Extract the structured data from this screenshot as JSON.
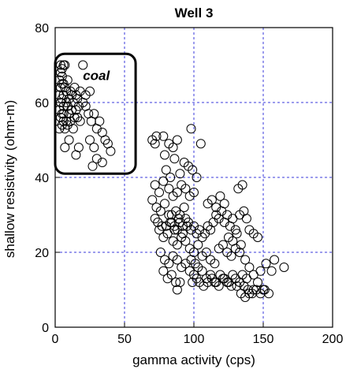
{
  "chart_data": {
    "type": "scatter",
    "title": "Well 3",
    "xlabel": "gamma activity (cps)",
    "ylabel": "shallow resistivity (ohm-m)",
    "xlim": [
      0,
      200
    ],
    "ylim": [
      0,
      80
    ],
    "xticks": [
      0,
      50,
      100,
      150,
      200
    ],
    "yticks": [
      0,
      20,
      40,
      60,
      80
    ],
    "grid": true,
    "colors": {
      "grid": "#3a3adb",
      "marker": "#000000",
      "box": "#000000"
    },
    "annotations": [
      {
        "text": "coal",
        "x": 20,
        "y": 66
      }
    ],
    "highlight_box": {
      "x0": 0,
      "x1": 58,
      "y0": 41,
      "y1": 73,
      "label": "coal"
    },
    "series": [
      {
        "marker": "open-circle",
        "points": [
          [
            4,
            70
          ],
          [
            5,
            69
          ],
          [
            6,
            70
          ],
          [
            7,
            70
          ],
          [
            4,
            68
          ],
          [
            5,
            67
          ],
          [
            3,
            66
          ],
          [
            5,
            65
          ],
          [
            4,
            64
          ],
          [
            6,
            65
          ],
          [
            3,
            62
          ],
          [
            5,
            61
          ],
          [
            4,
            60
          ],
          [
            6,
            59
          ],
          [
            3,
            58
          ],
          [
            5,
            57
          ],
          [
            4,
            56
          ],
          [
            6,
            55
          ],
          [
            5,
            54
          ],
          [
            7,
            53
          ],
          [
            3,
            53
          ],
          [
            6,
            62
          ],
          [
            7,
            64
          ],
          [
            8,
            63
          ],
          [
            9,
            66
          ],
          [
            8,
            60
          ],
          [
            9,
            59
          ],
          [
            10,
            61
          ],
          [
            11,
            63
          ],
          [
            12,
            62
          ],
          [
            13,
            60
          ],
          [
            14,
            64
          ],
          [
            15,
            62
          ],
          [
            16,
            61
          ],
          [
            17,
            59
          ],
          [
            18,
            63
          ],
          [
            10,
            57
          ],
          [
            11,
            55
          ],
          [
            12,
            58
          ],
          [
            14,
            56
          ],
          [
            15,
            58
          ],
          [
            16,
            56
          ],
          [
            8,
            55
          ],
          [
            9,
            54
          ],
          [
            13,
            53
          ],
          [
            7,
            48
          ],
          [
            10,
            50
          ],
          [
            15,
            46
          ],
          [
            17,
            48
          ],
          [
            20,
            70
          ],
          [
            20,
            60
          ],
          [
            22,
            59
          ],
          [
            24,
            57
          ],
          [
            26,
            55
          ],
          [
            28,
            57
          ],
          [
            30,
            53
          ],
          [
            32,
            55
          ],
          [
            34,
            52
          ],
          [
            36,
            50
          ],
          [
            38,
            49
          ],
          [
            40,
            47
          ],
          [
            25,
            50
          ],
          [
            28,
            48
          ],
          [
            30,
            45
          ],
          [
            34,
            44
          ],
          [
            27,
            43
          ],
          [
            22,
            62
          ],
          [
            25,
            63
          ],
          [
            18,
            55
          ],
          [
            6,
            57
          ],
          [
            70,
            50
          ],
          [
            73,
            51
          ],
          [
            72,
            49
          ],
          [
            78,
            51
          ],
          [
            82,
            49
          ],
          [
            85,
            48
          ],
          [
            88,
            50
          ],
          [
            98,
            53
          ],
          [
            105,
            49
          ],
          [
            79,
            46
          ],
          [
            80,
            42
          ],
          [
            83,
            40
          ],
          [
            86,
            45
          ],
          [
            90,
            41
          ],
          [
            93,
            44
          ],
          [
            96,
            43
          ],
          [
            99,
            42
          ],
          [
            102,
            40
          ],
          [
            72,
            38
          ],
          [
            75,
            36
          ],
          [
            78,
            39
          ],
          [
            82,
            37
          ],
          [
            85,
            35
          ],
          [
            88,
            36
          ],
          [
            91,
            38
          ],
          [
            94,
            37
          ],
          [
            97,
            35
          ],
          [
            100,
            36
          ],
          [
            70,
            34
          ],
          [
            73,
            32
          ],
          [
            76,
            31
          ],
          [
            79,
            33
          ],
          [
            82,
            30
          ],
          [
            84,
            28
          ],
          [
            86,
            27
          ],
          [
            88,
            26
          ],
          [
            90,
            28
          ],
          [
            92,
            27
          ],
          [
            94,
            29
          ],
          [
            96,
            28
          ],
          [
            98,
            26
          ],
          [
            100,
            27
          ],
          [
            102,
            25
          ],
          [
            104,
            26
          ],
          [
            106,
            24
          ],
          [
            108,
            25
          ],
          [
            110,
            27
          ],
          [
            112,
            26
          ],
          [
            114,
            28
          ],
          [
            116,
            30
          ],
          [
            118,
            29
          ],
          [
            120,
            31
          ],
          [
            122,
            28
          ],
          [
            124,
            30
          ],
          [
            126,
            27
          ],
          [
            128,
            29
          ],
          [
            130,
            26
          ],
          [
            133,
            30
          ],
          [
            136,
            31
          ],
          [
            138,
            29
          ],
          [
            140,
            26
          ],
          [
            143,
            25
          ],
          [
            146,
            24
          ],
          [
            110,
            33
          ],
          [
            113,
            34
          ],
          [
            116,
            32
          ],
          [
            119,
            35
          ],
          [
            122,
            33
          ],
          [
            132,
            37
          ],
          [
            135,
            38
          ],
          [
            75,
            26
          ],
          [
            78,
            24
          ],
          [
            81,
            25
          ],
          [
            85,
            23
          ],
          [
            88,
            22
          ],
          [
            91,
            24
          ],
          [
            94,
            23
          ],
          [
            97,
            21
          ],
          [
            100,
            20
          ],
          [
            103,
            22
          ],
          [
            80,
            27
          ],
          [
            83,
            28
          ],
          [
            86,
            26
          ],
          [
            89,
            29
          ],
          [
            92,
            25
          ],
          [
            95,
            27
          ],
          [
            84,
            30
          ],
          [
            87,
            31
          ],
          [
            90,
            30
          ],
          [
            93,
            32
          ],
          [
            76,
            20
          ],
          [
            79,
            18
          ],
          [
            82,
            17
          ],
          [
            85,
            19
          ],
          [
            88,
            18
          ],
          [
            91,
            16
          ],
          [
            94,
            17
          ],
          [
            97,
            15
          ],
          [
            100,
            14
          ],
          [
            103,
            16
          ],
          [
            106,
            15
          ],
          [
            109,
            13
          ],
          [
            112,
            14
          ],
          [
            115,
            12
          ],
          [
            118,
            11
          ],
          [
            121,
            13
          ],
          [
            124,
            12
          ],
          [
            127,
            11
          ],
          [
            130,
            13
          ],
          [
            133,
            12
          ],
          [
            136,
            11
          ],
          [
            139,
            10
          ],
          [
            142,
            9
          ],
          [
            145,
            10
          ],
          [
            148,
            9
          ],
          [
            151,
            10
          ],
          [
            104,
            12
          ],
          [
            107,
            11
          ],
          [
            110,
            12
          ],
          [
            113,
            13
          ],
          [
            116,
            12
          ],
          [
            119,
            14
          ],
          [
            122,
            13
          ],
          [
            125,
            12
          ],
          [
            128,
            14
          ],
          [
            131,
            11
          ],
          [
            134,
            9
          ],
          [
            137,
            8
          ],
          [
            140,
            9
          ],
          [
            143,
            10
          ],
          [
            78,
            15
          ],
          [
            81,
            13
          ],
          [
            84,
            14
          ],
          [
            87,
            12
          ],
          [
            118,
            21
          ],
          [
            121,
            22
          ],
          [
            124,
            20
          ],
          [
            127,
            19
          ],
          [
            130,
            21
          ],
          [
            133,
            20
          ],
          [
            125,
            24
          ],
          [
            128,
            23
          ],
          [
            131,
            25
          ],
          [
            134,
            22
          ],
          [
            137,
            18
          ],
          [
            140,
            16
          ],
          [
            143,
            14
          ],
          [
            146,
            12
          ],
          [
            148,
            15
          ],
          [
            152,
            17
          ],
          [
            156,
            15
          ],
          [
            158,
            18
          ],
          [
            165,
            16
          ],
          [
            150,
            10
          ],
          [
            154,
            9
          ],
          [
            98,
            18
          ],
          [
            101,
            17
          ],
          [
            106,
            19
          ],
          [
            109,
            20
          ],
          [
            112,
            18
          ],
          [
            115,
            17
          ],
          [
            88,
            10
          ],
          [
            90,
            12
          ],
          [
            99,
            12
          ],
          [
            102,
            13
          ],
          [
            135,
            14
          ],
          [
            138,
            13
          ],
          [
            74,
            28
          ],
          [
            77,
            27
          ],
          [
            72,
            29
          ]
        ]
      }
    ]
  }
}
